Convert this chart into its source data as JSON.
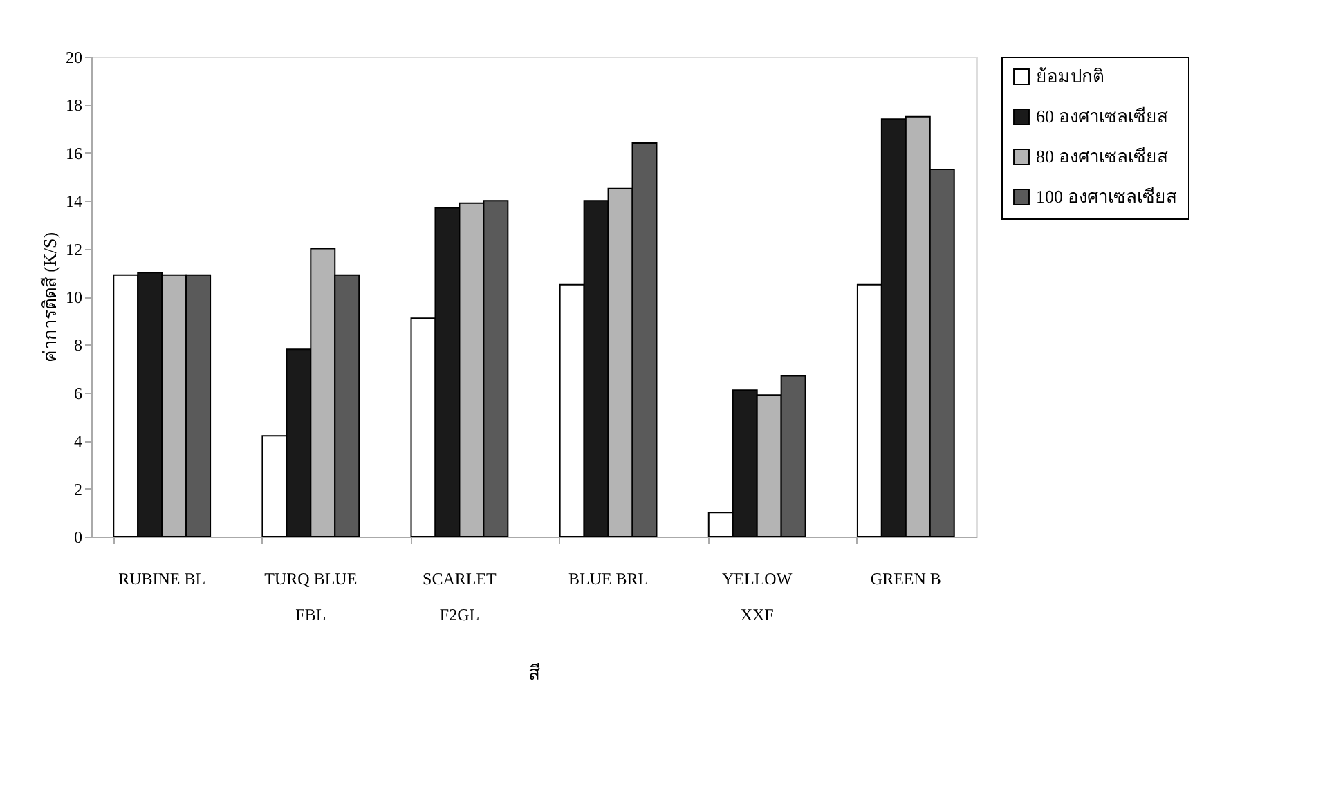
{
  "chart_data": {
    "type": "bar",
    "xlabel": "สี",
    "ylabel": "ค่าการติดสี (K/S)",
    "categories": [
      "RUBINE BL",
      "TURQ BLUE\nFBL",
      "SCARLET\nF2GL",
      "BLUE BRL",
      "YELLOW\nXXF",
      "GREEN B"
    ],
    "series": [
      {
        "name": "ย้อมปกติ",
        "color": "#ffffff",
        "values": [
          10.9,
          4.2,
          9.1,
          10.5,
          1.0,
          10.5
        ]
      },
      {
        "name": "60 องศาเซลเซียส",
        "color": "#1a1a1a",
        "values": [
          11.0,
          7.8,
          13.7,
          14.0,
          6.1,
          17.4
        ]
      },
      {
        "name": "80 องศาเซลเซียส",
        "color": "#b4b4b4",
        "values": [
          10.9,
          12.0,
          13.9,
          14.5,
          5.9,
          17.5
        ]
      },
      {
        "name": "100 องศาเซลเซียส",
        "color": "#5a5a5a",
        "values": [
          10.9,
          10.9,
          14.0,
          16.4,
          6.7,
          15.3
        ]
      }
    ],
    "ylim": [
      0,
      20
    ],
    "yticks": [
      0,
      2,
      4,
      6,
      8,
      10,
      12,
      14,
      16,
      18,
      20
    ],
    "grid": false,
    "legend": "right"
  }
}
